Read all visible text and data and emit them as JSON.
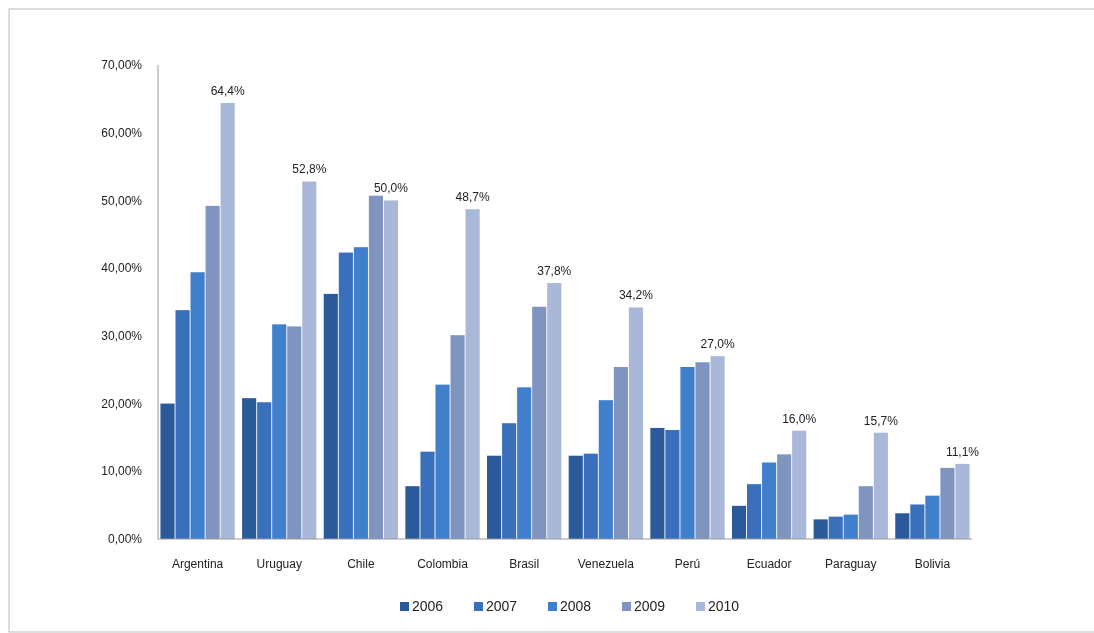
{
  "chart_data": {
    "type": "bar",
    "categories": [
      "Argentina",
      "Uruguay",
      "Chile",
      "Colombia",
      "Brasil",
      "Venezuela",
      "Perú",
      "Ecuador",
      "Paraguay",
      "Bolivia"
    ],
    "series": [
      {
        "name": "2006",
        "color": "#2a5a9a",
        "values": [
          20.0,
          20.8,
          36.2,
          7.8,
          12.3,
          12.3,
          16.4,
          4.9,
          2.9,
          3.8
        ]
      },
      {
        "name": "2007",
        "color": "#3a70bb",
        "values": [
          33.8,
          20.2,
          42.3,
          12.9,
          17.1,
          12.6,
          16.1,
          8.1,
          3.3,
          5.1
        ]
      },
      {
        "name": "2008",
        "color": "#3f7fcc",
        "values": [
          39.4,
          31.7,
          43.1,
          22.8,
          22.4,
          20.5,
          25.4,
          11.3,
          3.6,
          6.4
        ]
      },
      {
        "name": "2009",
        "color": "#7f95c0",
        "values": [
          49.2,
          31.4,
          50.7,
          30.1,
          34.3,
          25.4,
          26.1,
          12.5,
          7.8,
          10.5
        ]
      },
      {
        "name": "2010",
        "color": "#a9b8d8",
        "values": [
          64.4,
          52.8,
          50.0,
          48.7,
          37.8,
          34.2,
          27.0,
          16.0,
          15.7,
          11.1
        ],
        "value_labels": [
          "64,4%",
          "52,8%",
          "50,0%",
          "48,7%",
          "37,8%",
          "34,2%",
          "27,0%",
          "16,0%",
          "15,7%",
          "11,1%"
        ]
      }
    ],
    "ylim": [
      0,
      70
    ],
    "yticks": [
      {
        "value": 0,
        "label": "0,00%"
      },
      {
        "value": 10,
        "label": "10,00%"
      },
      {
        "value": 20,
        "label": "20,00%"
      },
      {
        "value": 30,
        "label": "30,00%"
      },
      {
        "value": 40,
        "label": "40,00%"
      },
      {
        "value": 50,
        "label": "50,00%"
      },
      {
        "value": 60,
        "label": "60,00%"
      },
      {
        "value": 70,
        "label": "70,00%"
      }
    ],
    "legend": "bottom"
  }
}
